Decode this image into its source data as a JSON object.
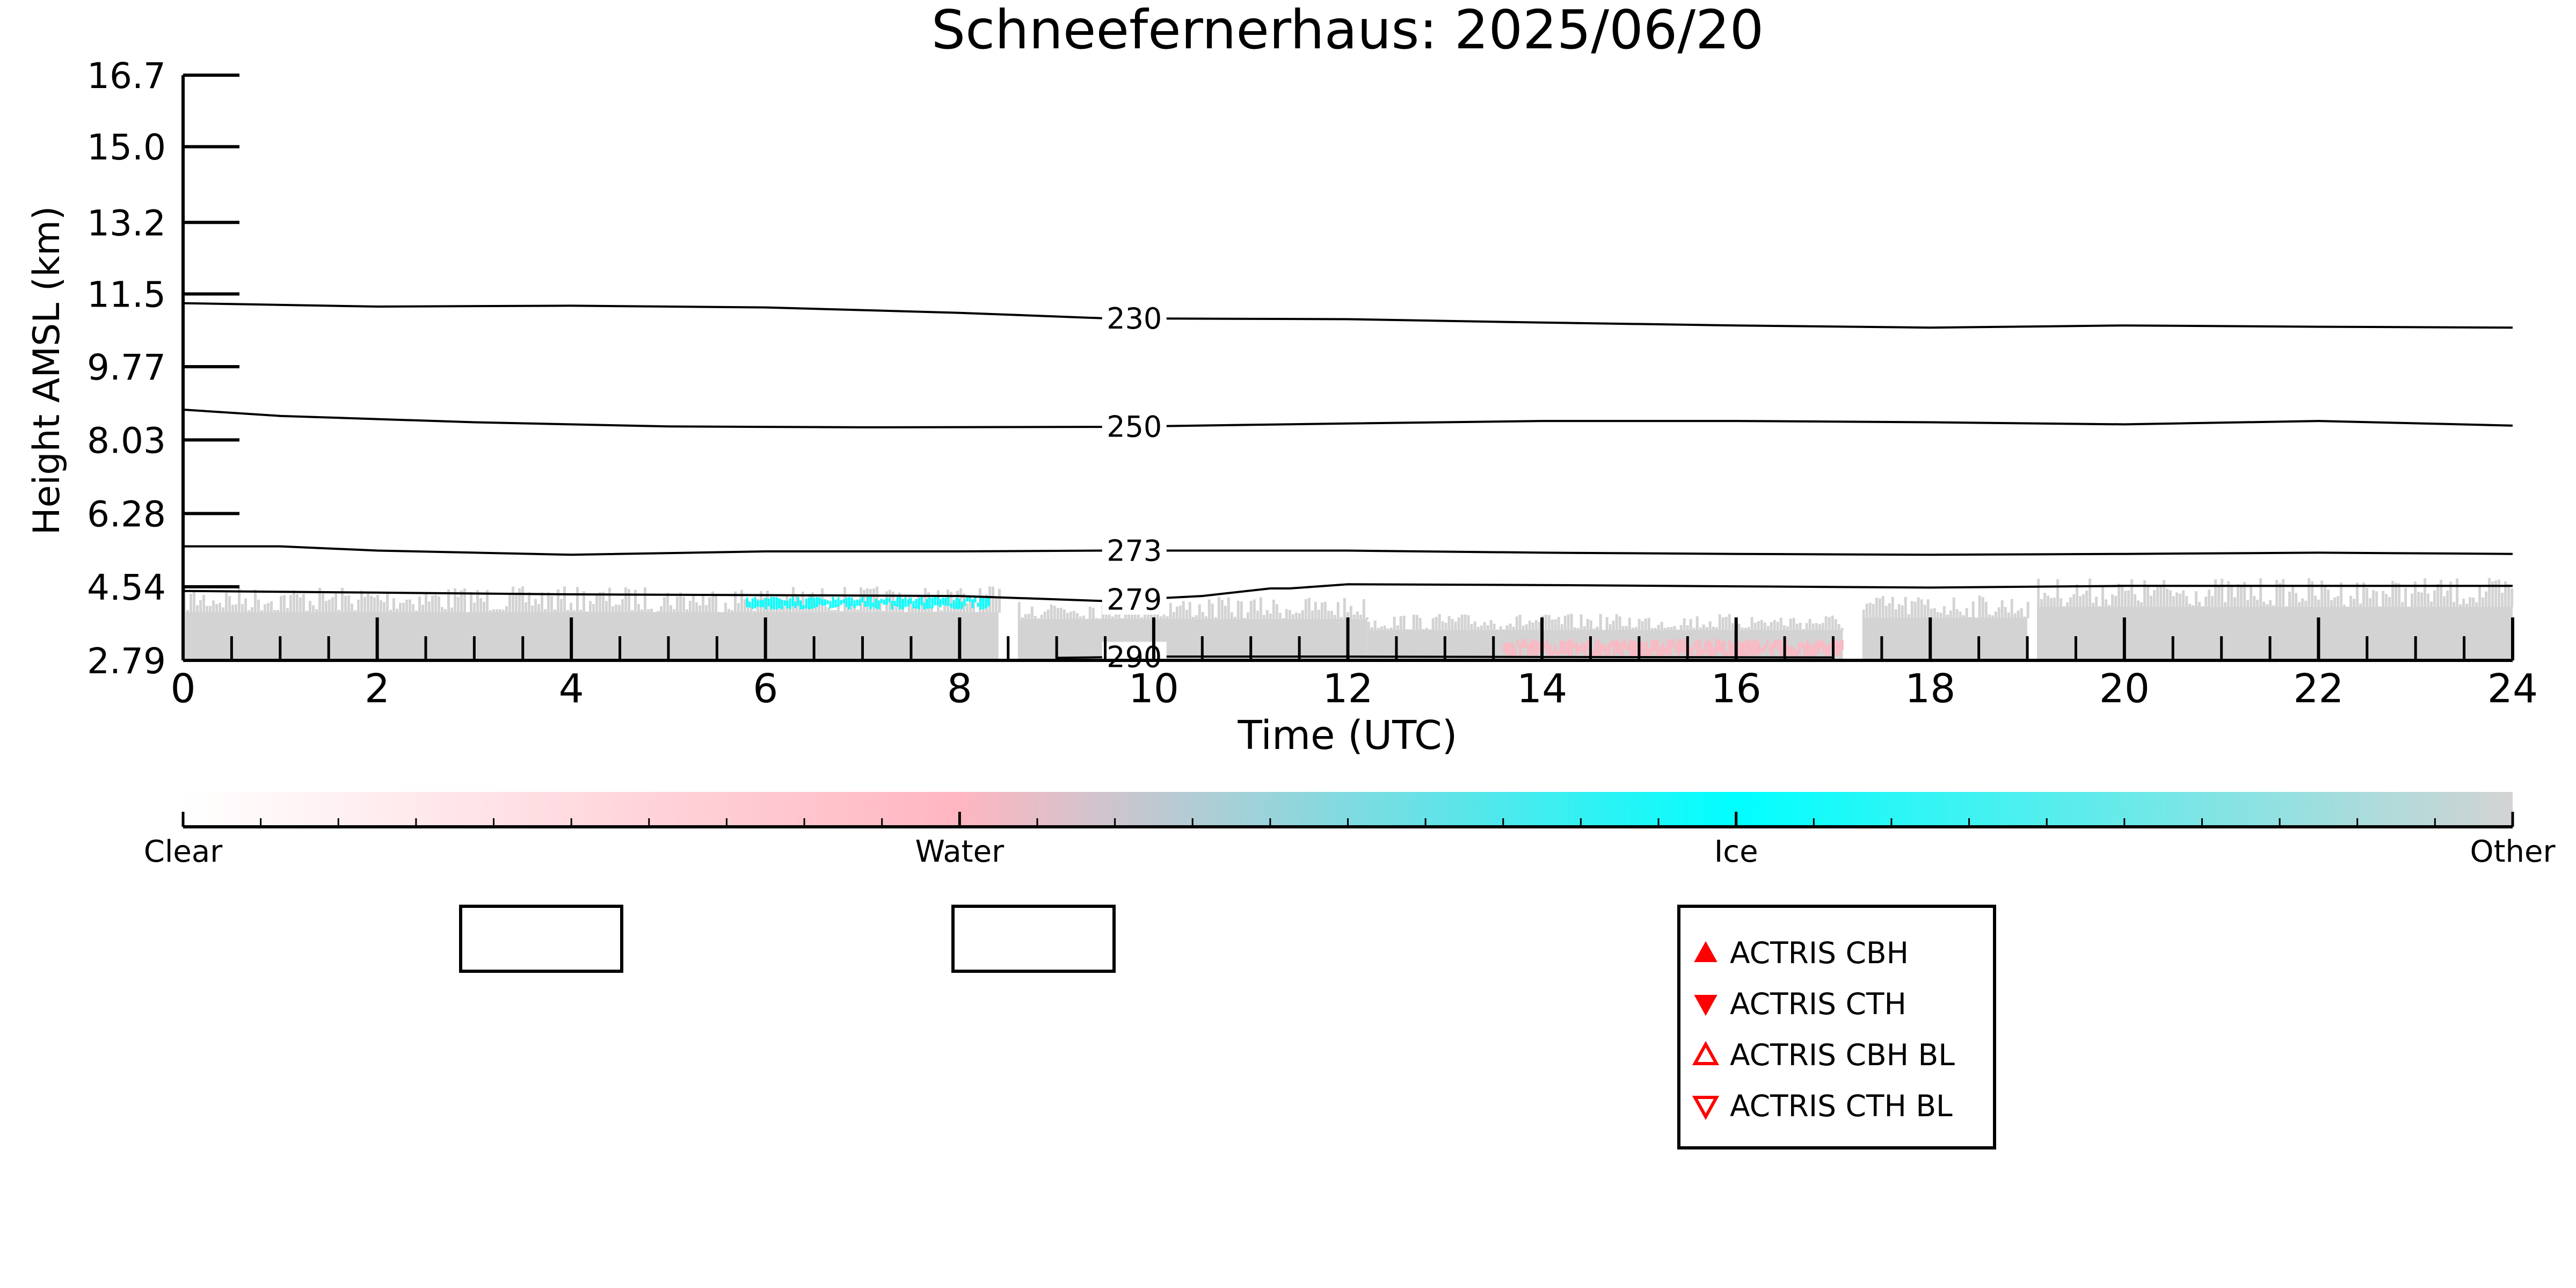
{
  "title": "Schneefernerhaus: 2025/06/20",
  "chart_data": {
    "type": "heatmap",
    "title": "Schneefernerhaus: 2025/06/20",
    "xlabel": "Time (UTC)",
    "ylabel": "Height AMSL (km)",
    "xlim": [
      0,
      24
    ],
    "ylim": [
      2.79,
      16.7
    ],
    "x_ticks": [
      "0",
      "2",
      "4",
      "6",
      "8",
      "10",
      "12",
      "14",
      "16",
      "18",
      "20",
      "22",
      "24"
    ],
    "y_ticks": [
      "2.79",
      "4.54",
      "6.28",
      "8.03",
      "9.77",
      "11.5",
      "13.2",
      "15.0",
      "16.7"
    ],
    "isotherms": [
      {
        "label": "230",
        "points": [
          [
            0,
            11.28
          ],
          [
            2,
            11.2
          ],
          [
            4,
            11.22
          ],
          [
            6,
            11.18
          ],
          [
            8,
            11.05
          ],
          [
            9.5,
            10.92
          ],
          [
            12,
            10.9
          ],
          [
            14,
            10.82
          ],
          [
            16,
            10.75
          ],
          [
            18,
            10.7
          ],
          [
            20,
            10.75
          ],
          [
            22,
            10.72
          ],
          [
            24,
            10.7
          ]
        ]
      },
      {
        "label": "250",
        "points": [
          [
            0,
            8.75
          ],
          [
            1,
            8.6
          ],
          [
            3,
            8.45
          ],
          [
            5,
            8.35
          ],
          [
            7,
            8.33
          ],
          [
            9.5,
            8.34
          ],
          [
            12,
            8.42
          ],
          [
            14,
            8.48
          ],
          [
            16,
            8.48
          ],
          [
            18,
            8.45
          ],
          [
            20,
            8.4
          ],
          [
            22,
            8.48
          ],
          [
            24,
            8.37
          ]
        ]
      },
      {
        "label": "273",
        "points": [
          [
            0,
            5.5
          ],
          [
            1,
            5.5
          ],
          [
            2,
            5.4
          ],
          [
            4,
            5.3
          ],
          [
            6,
            5.38
          ],
          [
            8,
            5.38
          ],
          [
            9.5,
            5.4
          ],
          [
            12,
            5.4
          ],
          [
            14,
            5.35
          ],
          [
            16,
            5.32
          ],
          [
            18,
            5.3
          ],
          [
            20,
            5.32
          ],
          [
            22,
            5.35
          ],
          [
            24,
            5.32
          ]
        ]
      },
      {
        "label": "279",
        "points": [
          [
            0,
            4.44
          ],
          [
            2,
            4.4
          ],
          [
            4,
            4.36
          ],
          [
            6,
            4.34
          ],
          [
            8,
            4.32
          ],
          [
            9.5,
            4.2
          ],
          [
            10.5,
            4.32
          ],
          [
            11.2,
            4.5
          ],
          [
            11.4,
            4.5
          ],
          [
            12,
            4.6
          ],
          [
            14,
            4.58
          ],
          [
            16,
            4.55
          ],
          [
            18,
            4.52
          ],
          [
            20,
            4.56
          ],
          [
            22,
            4.56
          ],
          [
            24,
            4.56
          ]
        ]
      },
      {
        "label": "290",
        "points": [
          [
            9,
            2.85
          ],
          [
            10,
            2.88
          ],
          [
            12,
            2.88
          ],
          [
            14,
            2.87
          ],
          [
            17,
            2.86
          ]
        ]
      }
    ],
    "classification_regions": [
      {
        "class": "Other",
        "x": [
          0,
          8.4
        ],
        "y": [
          2.79,
          4.55
        ]
      },
      {
        "class": "Other",
        "x": [
          8.6,
          12.2
        ],
        "y": [
          2.79,
          4.3
        ]
      },
      {
        "class": "Other",
        "x": [
          12.2,
          17.1
        ],
        "y": [
          2.79,
          3.9
        ]
      },
      {
        "class": "Other",
        "x": [
          17.3,
          19
        ],
        "y": [
          2.79,
          4.35
        ]
      },
      {
        "class": "Other",
        "x": [
          19.1,
          24
        ],
        "y": [
          2.79,
          4.75
        ]
      },
      {
        "class": "Ice",
        "x": [
          5.8,
          8.3
        ],
        "y": [
          4.0,
          4.3
        ]
      },
      {
        "class": "Water",
        "x": [
          13.6,
          17.1
        ],
        "y": [
          2.85,
          3.3
        ]
      }
    ],
    "colorbar": {
      "labels": [
        "Clear",
        "Water",
        "Ice",
        "Other"
      ],
      "colors": [
        "#ffffff",
        "#ffb6c1",
        "#00ffff",
        "#d3d3d3"
      ]
    },
    "legend": {
      "placement": "bottom",
      "entries": [
        {
          "label": "ACTRIS CBH",
          "marker": "triangle-up-filled",
          "color": "#ff0000"
        },
        {
          "label": "ACTRIS CTH",
          "marker": "triangle-down-filled",
          "color": "#ff0000"
        },
        {
          "label": "ACTRIS CBH BL",
          "marker": "triangle-up-open",
          "color": "#ff0000"
        },
        {
          "label": "ACTRIS CTH BL",
          "marker": "triangle-down-open",
          "color": "#ff0000"
        }
      ]
    }
  }
}
